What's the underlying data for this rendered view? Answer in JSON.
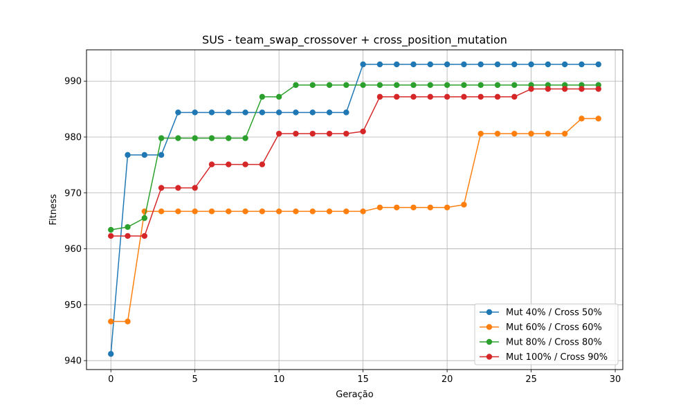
{
  "chart_data": {
    "type": "line",
    "title": "SUS - team_swap_crossover + cross_position_mutation",
    "xlabel": "Geração",
    "ylabel": "Fitness",
    "xlim": [
      -1.45,
      30.45
    ],
    "ylim": [
      938.4,
      995.6
    ],
    "xticks": [
      0,
      5,
      10,
      15,
      20,
      25,
      30
    ],
    "yticks": [
      940,
      950,
      960,
      970,
      980,
      990
    ],
    "grid": true,
    "legend_position": "lower right",
    "x": [
      0,
      1,
      2,
      3,
      4,
      5,
      6,
      7,
      8,
      9,
      10,
      11,
      12,
      13,
      14,
      15,
      16,
      17,
      18,
      19,
      20,
      21,
      22,
      23,
      24,
      25,
      26,
      27,
      28,
      29
    ],
    "series": [
      {
        "name": "Mut 40% / Cross 50%",
        "color": "#1f77b4",
        "values": [
          941.2,
          976.8,
          976.8,
          976.8,
          984.4,
          984.4,
          984.4,
          984.4,
          984.4,
          984.4,
          984.4,
          984.4,
          984.4,
          984.4,
          984.4,
          993.0,
          993.0,
          993.0,
          993.0,
          993.0,
          993.0,
          993.0,
          993.0,
          993.0,
          993.0,
          993.0,
          993.0,
          993.0,
          993.0,
          993.0
        ]
      },
      {
        "name": "Mut 60% / Cross 60%",
        "color": "#ff7f0e",
        "values": [
          947.0,
          947.0,
          966.7,
          966.7,
          966.7,
          966.7,
          966.7,
          966.7,
          966.7,
          966.7,
          966.7,
          966.7,
          966.7,
          966.7,
          966.7,
          966.7,
          967.4,
          967.4,
          967.4,
          967.4,
          967.4,
          967.9,
          980.6,
          980.6,
          980.6,
          980.6,
          980.6,
          980.6,
          983.3,
          983.3
        ]
      },
      {
        "name": "Mut 80% / Cross 80%",
        "color": "#2ca02c",
        "values": [
          963.4,
          963.9,
          965.5,
          979.8,
          979.8,
          979.8,
          979.8,
          979.8,
          979.8,
          987.2,
          987.2,
          989.3,
          989.3,
          989.3,
          989.3,
          989.3,
          989.3,
          989.3,
          989.3,
          989.3,
          989.3,
          989.3,
          989.3,
          989.3,
          989.3,
          989.3,
          989.3,
          989.3,
          989.3,
          989.3
        ]
      },
      {
        "name": "Mut 100% / Cross 90%",
        "color": "#d62728",
        "values": [
          962.3,
          962.3,
          962.3,
          970.9,
          970.9,
          970.9,
          975.1,
          975.1,
          975.1,
          975.1,
          980.6,
          980.6,
          980.6,
          980.6,
          980.6,
          981.0,
          987.2,
          987.2,
          987.2,
          987.2,
          987.2,
          987.2,
          987.2,
          987.2,
          987.2,
          988.6,
          988.6,
          988.6,
          988.6,
          988.6
        ]
      }
    ]
  }
}
